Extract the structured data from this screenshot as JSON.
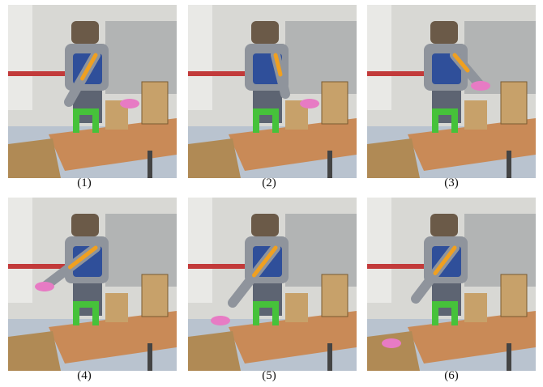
{
  "figure": {
    "panels": [
      {
        "label": "(1)",
        "arm": "down",
        "object": "table"
      },
      {
        "label": "(2)",
        "arm": "reach",
        "object": "table"
      },
      {
        "label": "(3)",
        "arm": "grasp",
        "object": "hand"
      },
      {
        "label": "(4)",
        "arm": "lift",
        "object": "hand"
      },
      {
        "label": "(5)",
        "arm": "drop",
        "object": "falling"
      },
      {
        "label": "(6)",
        "arm": "retract",
        "object": "box"
      }
    ],
    "colors": {
      "wall": "#d8d8d4",
      "floor": "#b9c3cf",
      "table": "#c98a57",
      "robot_blue": "#2f4f9a",
      "robot_silver": "#8f949c",
      "green_object": "#46c23a",
      "pink_object": "#e77bc4",
      "cardboard": "#c7a16a",
      "orange_marker": "#f0a020"
    }
  }
}
